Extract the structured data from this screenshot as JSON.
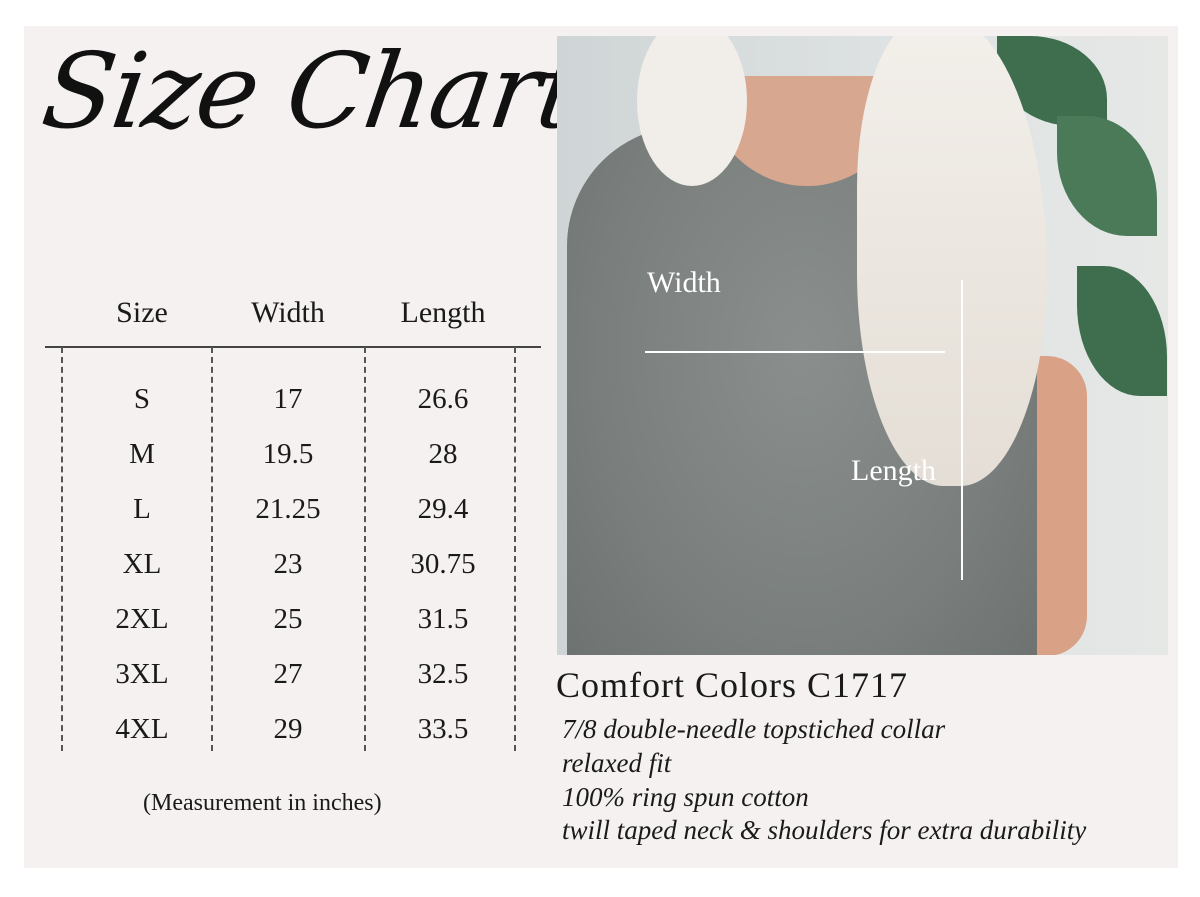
{
  "title": "Size Chart",
  "table": {
    "headers": [
      "Size",
      "Width",
      "Length"
    ],
    "rows": [
      [
        "S",
        "17",
        "26.6"
      ],
      [
        "M",
        "19.5",
        "28"
      ],
      [
        "L",
        "21.25",
        "29.4"
      ],
      [
        "XL",
        "23",
        "30.75"
      ],
      [
        "2XL",
        "25",
        "31.5"
      ],
      [
        "3XL",
        "27",
        "32.5"
      ],
      [
        "4XL",
        "29",
        "33.5"
      ]
    ],
    "note": "(Measurement in inches)"
  },
  "photo": {
    "width_label": "Width",
    "length_label": "Length"
  },
  "product": {
    "name": "Comfort Colors C1717",
    "features": [
      "7/8 double-needle topstiched collar",
      "relaxed fit",
      "100% ring spun cotton",
      "twill taped neck & shoulders for extra durability"
    ]
  }
}
